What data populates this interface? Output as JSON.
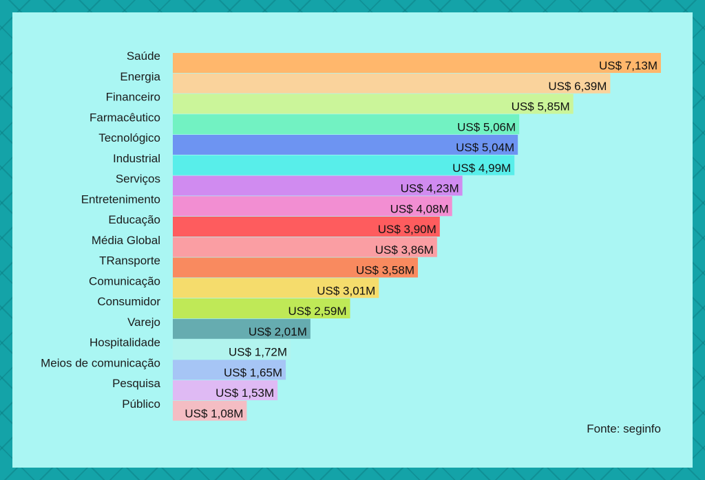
{
  "source": "Fonte: seginfo",
  "chart_data": {
    "type": "bar",
    "orientation": "horizontal",
    "categories": [
      "Saúde",
      "Energia",
      "Financeiro",
      "Farmacêutico",
      "Tecnológico",
      "Industrial",
      "Serviços",
      "Entretenimento",
      "Educação",
      "Média Global",
      "TRansporte",
      "Comunicação",
      "Consumidor",
      "Varejo",
      "Hospitalidade",
      "Meios de comunicação",
      "Pesquisa",
      "Público"
    ],
    "values": [
      7.13,
      6.39,
      5.85,
      5.06,
      5.04,
      4.99,
      4.23,
      4.08,
      3.9,
      3.86,
      3.58,
      3.01,
      2.59,
      2.01,
      1.72,
      1.65,
      1.53,
      1.08
    ],
    "value_labels": [
      "US$ 7,13M",
      "US$ 6,39M",
      "US$ 5,85M",
      "US$ 5,06M",
      "US$ 5,04M",
      "US$ 4,99M",
      "US$ 4,23M",
      "US$ 4,08M",
      "US$ 3,90M",
      "US$ 3,86M",
      "US$ 3,58M",
      "US$ 3,01M",
      "US$ 2,59M",
      "US$ 2,01M",
      "US$ 1,72M",
      "US$ 1,65M",
      "US$ 1,53M",
      "US$ 1,08M"
    ],
    "colors": [
      "#ffb76c",
      "#fad39c",
      "#cbf59a",
      "#72f2c2",
      "#6d94f2",
      "#58eeea",
      "#d08bf0",
      "#f28ed2",
      "#fe5c5e",
      "#fa9ea3",
      "#f98a5f",
      "#f5dc6c",
      "#bfe957",
      "#66acb0",
      "#b2f4ee",
      "#a6c5f5",
      "#dfbaf4",
      "#f4bdc3"
    ],
    "xlim": [
      0,
      7.13
    ],
    "grid": false,
    "legend": "none"
  }
}
